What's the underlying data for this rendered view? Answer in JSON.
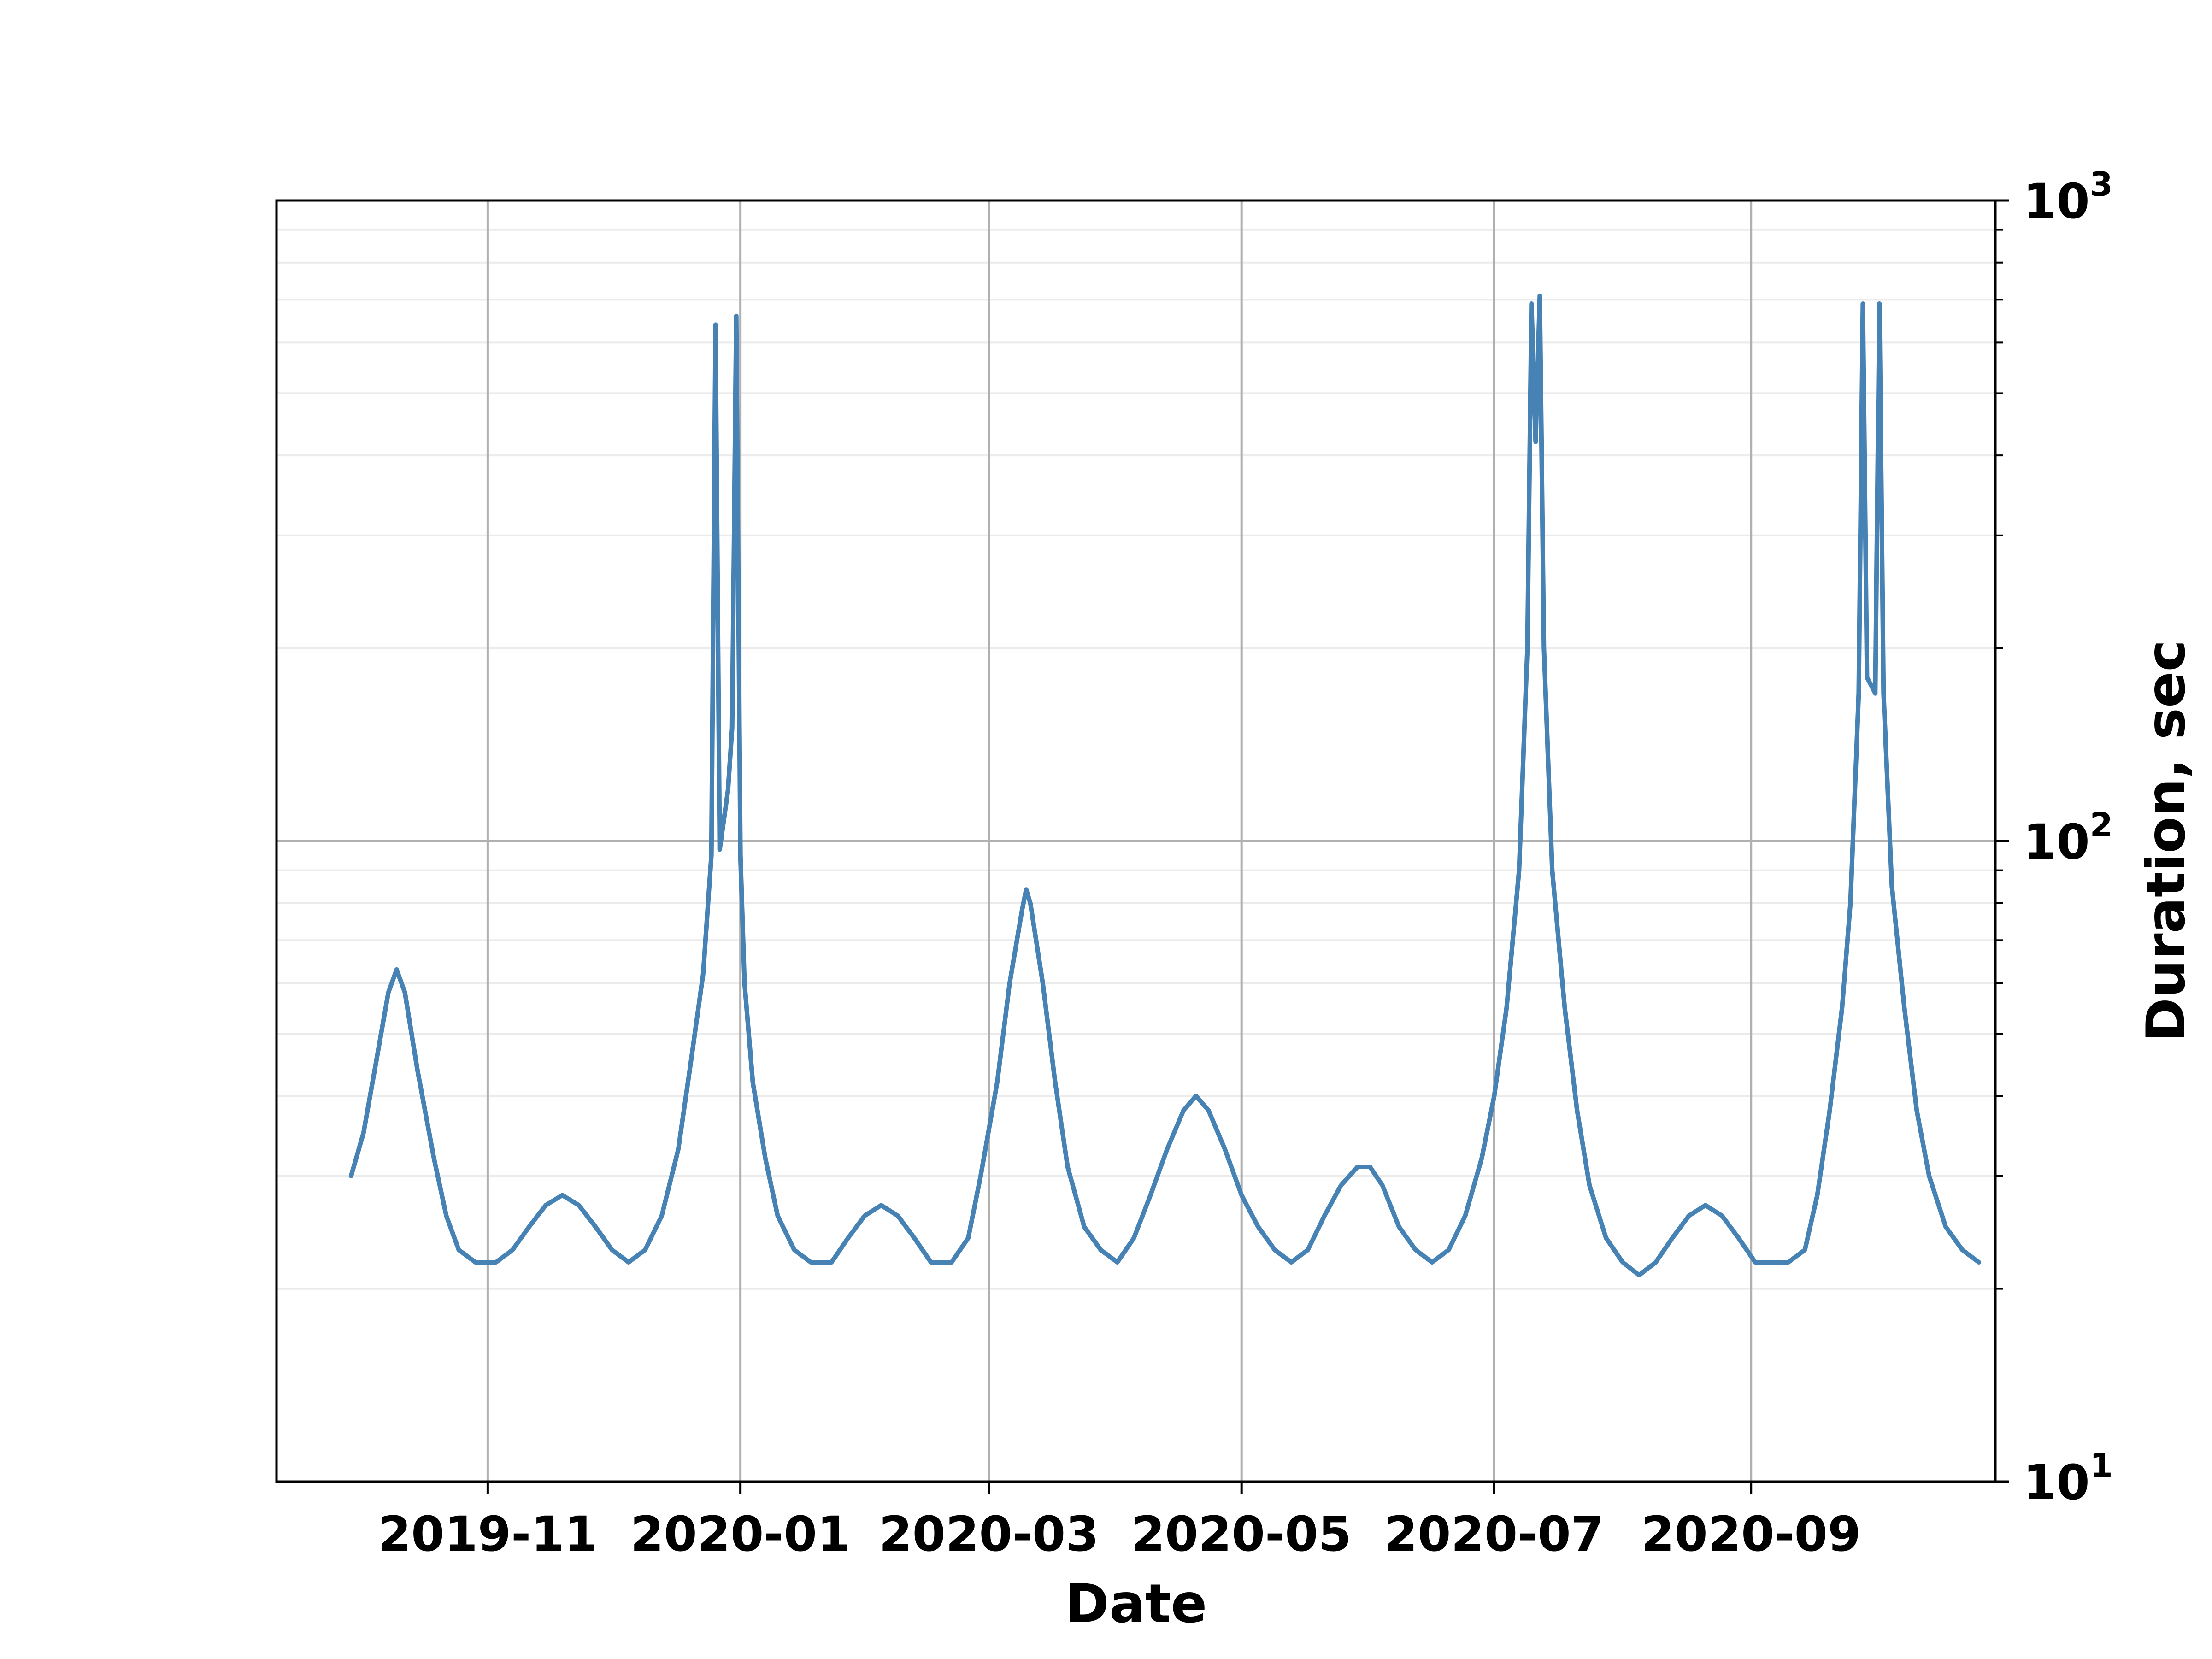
{
  "chart_data": {
    "type": "line",
    "title": "",
    "xlabel": "Date",
    "ylabel": "Duration, sec",
    "y_scale": "log",
    "y_axis_side": "right",
    "ylim": [
      10,
      1000
    ],
    "xlim": [
      "2019-09-11",
      "2020-10-30"
    ],
    "grid": true,
    "legend": "none",
    "x_ticks": [
      "2019-11",
      "2020-01",
      "2020-03",
      "2020-05",
      "2020-07",
      "2020-09"
    ],
    "x_tick_dates": [
      "2019-11-01",
      "2020-01-01",
      "2020-03-01",
      "2020-05-01",
      "2020-07-01",
      "2020-09-01"
    ],
    "y_ticks": [
      {
        "value": 10,
        "base": "10",
        "exp": "1"
      },
      {
        "value": 100,
        "base": "10",
        "exp": "2"
      },
      {
        "value": 1000,
        "base": "10",
        "exp": "3"
      }
    ],
    "series": [
      {
        "color": "#4682b4",
        "points": [
          [
            "2019-09-29",
            30
          ],
          [
            "2019-10-02",
            35
          ],
          [
            "2019-10-05",
            45
          ],
          [
            "2019-10-08",
            58
          ],
          [
            "2019-10-10",
            63
          ],
          [
            "2019-10-12",
            58
          ],
          [
            "2019-10-15",
            44
          ],
          [
            "2019-10-19",
            32
          ],
          [
            "2019-10-22",
            26
          ],
          [
            "2019-10-25",
            23
          ],
          [
            "2019-10-29",
            22
          ],
          [
            "2019-11-03",
            22
          ],
          [
            "2019-11-07",
            23
          ],
          [
            "2019-11-11",
            25
          ],
          [
            "2019-11-15",
            27
          ],
          [
            "2019-11-19",
            28
          ],
          [
            "2019-11-23",
            27
          ],
          [
            "2019-11-27",
            25
          ],
          [
            "2019-12-01",
            23
          ],
          [
            "2019-12-05",
            22
          ],
          [
            "2019-12-09",
            23
          ],
          [
            "2019-12-13",
            26
          ],
          [
            "2019-12-17",
            33
          ],
          [
            "2019-12-20",
            45
          ],
          [
            "2019-12-23",
            62
          ],
          [
            "2019-12-25",
            95
          ],
          [
            "2019-12-26",
            640
          ],
          [
            "2019-12-27",
            97
          ],
          [
            "2019-12-29",
            120
          ],
          [
            "2019-12-30",
            150
          ],
          [
            "2019-12-31",
            660
          ],
          [
            "2020-01-01",
            95
          ],
          [
            "2020-01-02",
            60
          ],
          [
            "2020-01-04",
            42
          ],
          [
            "2020-01-07",
            32
          ],
          [
            "2020-01-10",
            26
          ],
          [
            "2020-01-14",
            23
          ],
          [
            "2020-01-18",
            22
          ],
          [
            "2020-01-23",
            22
          ],
          [
            "2020-01-27",
            24
          ],
          [
            "2020-01-31",
            26
          ],
          [
            "2020-02-04",
            27
          ],
          [
            "2020-02-08",
            26
          ],
          [
            "2020-02-12",
            24
          ],
          [
            "2020-02-16",
            22
          ],
          [
            "2020-02-21",
            22
          ],
          [
            "2020-02-25",
            24
          ],
          [
            "2020-02-28",
            30
          ],
          [
            "2020-03-03",
            42
          ],
          [
            "2020-03-06",
            60
          ],
          [
            "2020-03-09",
            78
          ],
          [
            "2020-03-10",
            84
          ],
          [
            "2020-03-11",
            80
          ],
          [
            "2020-03-14",
            60
          ],
          [
            "2020-03-17",
            42
          ],
          [
            "2020-03-20",
            31
          ],
          [
            "2020-03-24",
            25
          ],
          [
            "2020-03-28",
            23
          ],
          [
            "2020-04-01",
            22
          ],
          [
            "2020-04-05",
            24
          ],
          [
            "2020-04-09",
            28
          ],
          [
            "2020-04-13",
            33
          ],
          [
            "2020-04-17",
            38
          ],
          [
            "2020-04-20",
            40
          ],
          [
            "2020-04-23",
            38
          ],
          [
            "2020-04-27",
            33
          ],
          [
            "2020-05-01",
            28
          ],
          [
            "2020-05-05",
            25
          ],
          [
            "2020-05-09",
            23
          ],
          [
            "2020-05-13",
            22
          ],
          [
            "2020-05-17",
            23
          ],
          [
            "2020-05-21",
            26
          ],
          [
            "2020-05-25",
            29
          ],
          [
            "2020-05-29",
            31
          ],
          [
            "2020-06-01",
            31
          ],
          [
            "2020-06-04",
            29
          ],
          [
            "2020-06-08",
            25
          ],
          [
            "2020-06-12",
            23
          ],
          [
            "2020-06-16",
            22
          ],
          [
            "2020-06-20",
            23
          ],
          [
            "2020-06-24",
            26
          ],
          [
            "2020-06-28",
            32
          ],
          [
            "2020-07-01",
            40
          ],
          [
            "2020-07-04",
            55
          ],
          [
            "2020-07-07",
            90
          ],
          [
            "2020-07-09",
            200
          ],
          [
            "2020-07-10",
            690
          ],
          [
            "2020-07-11",
            420
          ],
          [
            "2020-07-12",
            710
          ],
          [
            "2020-07-13",
            200
          ],
          [
            "2020-07-15",
            90
          ],
          [
            "2020-07-18",
            55
          ],
          [
            "2020-07-21",
            38
          ],
          [
            "2020-07-24",
            29
          ],
          [
            "2020-07-28",
            24
          ],
          [
            "2020-08-01",
            22
          ],
          [
            "2020-08-05",
            21
          ],
          [
            "2020-08-09",
            22
          ],
          [
            "2020-08-13",
            24
          ],
          [
            "2020-08-17",
            26
          ],
          [
            "2020-08-21",
            27
          ],
          [
            "2020-08-25",
            26
          ],
          [
            "2020-08-29",
            24
          ],
          [
            "2020-09-02",
            22
          ],
          [
            "2020-09-06",
            22
          ],
          [
            "2020-09-10",
            22
          ],
          [
            "2020-09-14",
            23
          ],
          [
            "2020-09-17",
            28
          ],
          [
            "2020-09-20",
            38
          ],
          [
            "2020-09-23",
            55
          ],
          [
            "2020-09-25",
            80
          ],
          [
            "2020-09-27",
            170
          ],
          [
            "2020-09-28",
            690
          ],
          [
            "2020-09-29",
            180
          ],
          [
            "2020-09-30",
            175
          ],
          [
            "2020-10-01",
            170
          ],
          [
            "2020-10-02",
            690
          ],
          [
            "2020-10-03",
            170
          ],
          [
            "2020-10-05",
            85
          ],
          [
            "2020-10-08",
            55
          ],
          [
            "2020-10-11",
            38
          ],
          [
            "2020-10-14",
            30
          ],
          [
            "2020-10-18",
            25
          ],
          [
            "2020-10-22",
            23
          ],
          [
            "2020-10-26",
            22
          ]
        ]
      }
    ]
  }
}
